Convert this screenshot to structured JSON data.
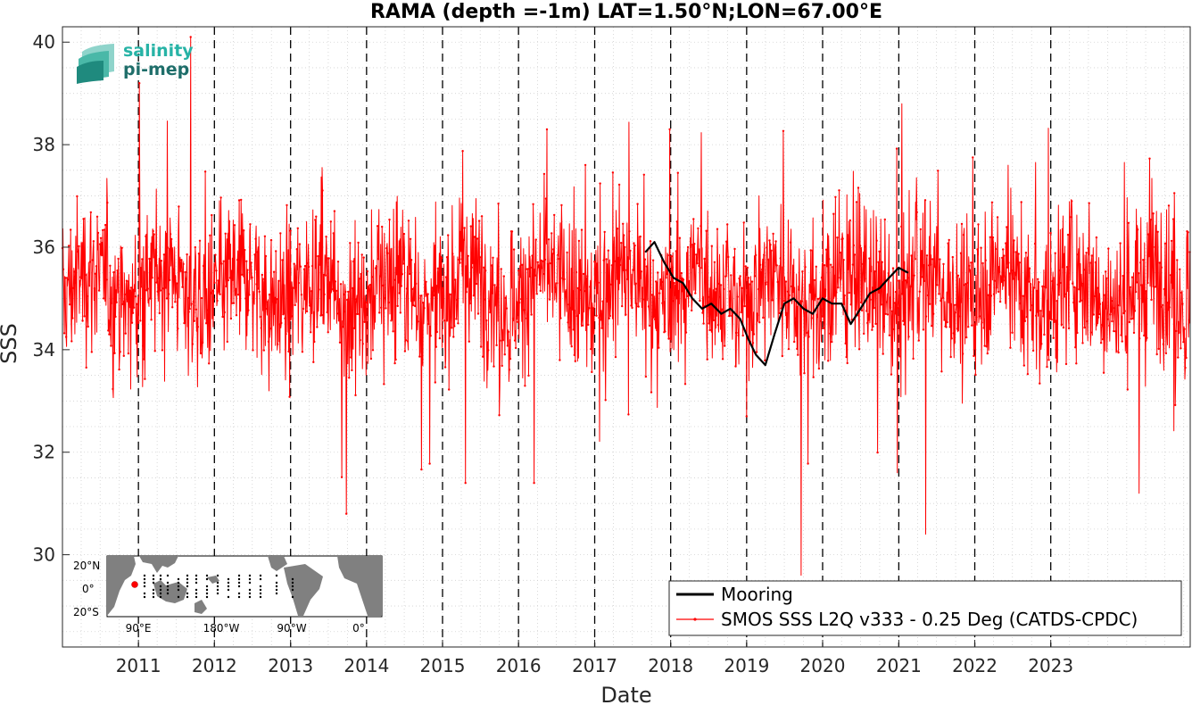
{
  "chart_data": {
    "type": "line",
    "title": "RAMA (depth =-1m) LAT=1.50°N;LON=67.00°E",
    "xlabel": "Date",
    "ylabel": "SSS",
    "xlim": [
      "2010-01-01",
      "2024-11-01"
    ],
    "ylim": [
      28.2,
      40.3
    ],
    "xticks": [
      "2011",
      "2012",
      "2013",
      "2014",
      "2015",
      "2016",
      "2017",
      "2018",
      "2019",
      "2020",
      "2021",
      "2022",
      "2023"
    ],
    "yticks": [
      30,
      32,
      34,
      36,
      38,
      40
    ],
    "grid": "minor dotted",
    "year_boundary_lines": "dashed",
    "legend_position": "bottom-right",
    "series": [
      {
        "name": "Mooring",
        "color": "#000000",
        "segments": [
          {
            "x": [
              "2017-09-01",
              "2017-10-15",
              "2017-12-01",
              "2018-01-15",
              "2018-03-01",
              "2018-04-15",
              "2018-06-01",
              "2018-07-15",
              "2018-09-01",
              "2018-10-15",
              "2018-12-01",
              "2019-01-10",
              "2019-02-15",
              "2019-04-01",
              "2019-05-15",
              "2019-07-01",
              "2019-08-15",
              "2019-10-01",
              "2019-11-15",
              "2019-12-31",
              "2020-02-15",
              "2020-04-01",
              "2020-05-15",
              "2020-07-01",
              "2020-08-15",
              "2020-10-01",
              "2020-11-15",
              "2020-12-31",
              "2021-02-15"
            ],
            "y": [
              35.9,
              36.1,
              35.7,
              35.4,
              35.3,
              35.0,
              34.8,
              34.9,
              34.7,
              34.8,
              34.6,
              34.2,
              33.9,
              33.7,
              34.3,
              34.9,
              35.0,
              34.8,
              34.7,
              35.0,
              34.9,
              34.9,
              34.5,
              34.8,
              35.1,
              35.2,
              35.4,
              35.6,
              35.5
            ]
          }
        ]
      },
      {
        "name": "SMOS SSS L2Q v333 - 0.25 Deg (CATDS-CPDC)",
        "color": "#ff0000",
        "description": "dense noisy daily series, mean ~35.2, std ~0.8, spikes up to ~40.1 and down to ~29.6; annotated extremes below",
        "mean": 35.2,
        "extremes": [
          {
            "x": "2011-01-05",
            "y": 39.2
          },
          {
            "x": "2011-09-10",
            "y": 40.1
          },
          {
            "x": "2013-09-25",
            "y": 30.8
          },
          {
            "x": "2015-04-20",
            "y": 31.4
          },
          {
            "x": "2016-03-15",
            "y": 31.4
          },
          {
            "x": "2017-12-28",
            "y": 38.3
          },
          {
            "x": "2019-09-20",
            "y": 29.6
          },
          {
            "x": "2020-12-25",
            "y": 31.6
          },
          {
            "x": "2021-01-15",
            "y": 38.8
          },
          {
            "x": "2021-05-10",
            "y": 30.4
          },
          {
            "x": "2024-03-01",
            "y": 31.2
          }
        ]
      }
    ],
    "legend": [
      "Mooring",
      "SMOS SSS L2Q v333 - 0.25 Deg (CATDS-CPDC)"
    ]
  },
  "inset_map": {
    "lat_labels": [
      "20°N",
      "0°",
      "20°S"
    ],
    "lon_labels": [
      "90°E",
      "180°W",
      "90°W",
      "0°"
    ],
    "land_color": "#808080",
    "mooring_marker_color": "#ff0000"
  },
  "logo": {
    "line1": "salinity",
    "line2": "pi-mep",
    "color1": "#27b3a6",
    "color2": "#1f6e6a"
  }
}
